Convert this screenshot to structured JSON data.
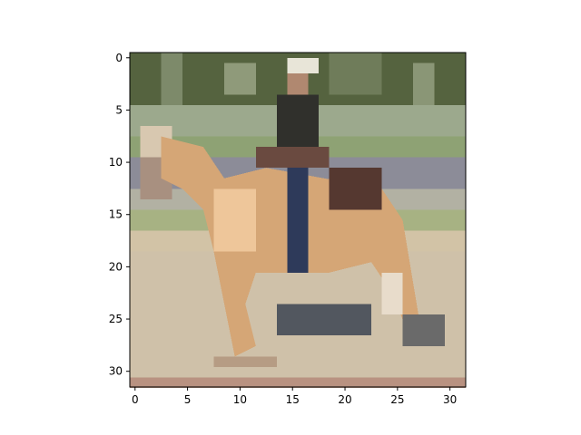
{
  "chart_data": {
    "type": "image",
    "xlim": [
      -0.5,
      31.5
    ],
    "ylim": [
      31.5,
      -0.5
    ],
    "xticks": [
      0,
      5,
      10,
      15,
      20,
      25,
      30
    ],
    "yticks": [
      0,
      5,
      10,
      15,
      20,
      25,
      30
    ]
  }
}
